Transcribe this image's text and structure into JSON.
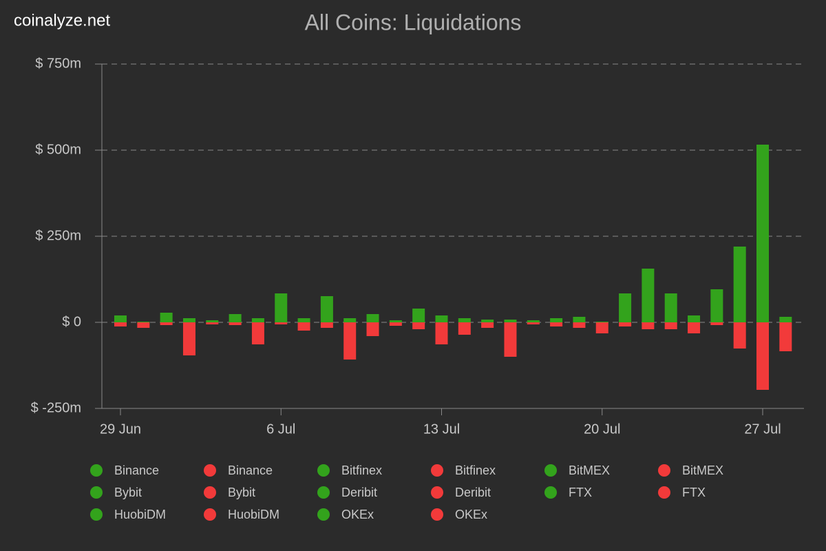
{
  "chart_data": {
    "type": "bar",
    "stacked": true,
    "watermark": "coinalyze.net",
    "title": "All Coins: Liquidations",
    "categories": [
      "29 Jun",
      null,
      null,
      null,
      null,
      null,
      null,
      "6 Jul",
      null,
      null,
      null,
      null,
      null,
      null,
      "13 Jul",
      null,
      null,
      null,
      null,
      null,
      null,
      "20 Jul",
      null,
      null,
      null,
      null,
      null,
      null,
      "27 Jul",
      null
    ],
    "ylim": [
      -250,
      750
    ],
    "yticks": [
      {
        "value": -250,
        "label": "$ -250m"
      },
      {
        "value": 0,
        "label": "$ 0"
      },
      {
        "value": 250,
        "label": "$ 250m"
      },
      {
        "value": 500,
        "label": "$ 500m"
      },
      {
        "value": 750,
        "label": "$ 750m"
      }
    ],
    "grid": true,
    "legend": "bottom",
    "series": [
      {
        "name": "Binance",
        "color": "#33a31c",
        "values": [
          20,
          2,
          28,
          12,
          6,
          24,
          12,
          84,
          12,
          76,
          12,
          24,
          6,
          40,
          20,
          12,
          8,
          8,
          6,
          12,
          16,
          2,
          84,
          156,
          84,
          20,
          96,
          220,
          516,
          16
        ]
      },
      {
        "name": "Binance",
        "color": "#f23a3a",
        "values": [
          -12,
          -16,
          -8,
          -96,
          -6,
          -8,
          -64,
          -6,
          -24,
          -16,
          -108,
          -40,
          -10,
          -20,
          -64,
          -36,
          -16,
          -100,
          -6,
          -12,
          -16,
          -32,
          -12,
          -20,
          -20,
          -32,
          -8,
          -76,
          -196,
          -84
        ]
      },
      {
        "name": "Bitfinex",
        "color": "#33a31c",
        "values": [
          0,
          0,
          0,
          0,
          0,
          0,
          0,
          0,
          0,
          0,
          0,
          0,
          0,
          0,
          0,
          0,
          0,
          0,
          0,
          0,
          0,
          0,
          0,
          0,
          0,
          0,
          0,
          0,
          0,
          0
        ]
      },
      {
        "name": "Bitfinex",
        "color": "#f23a3a",
        "values": [
          0,
          0,
          0,
          0,
          0,
          0,
          0,
          0,
          0,
          0,
          0,
          0,
          0,
          0,
          0,
          0,
          0,
          0,
          0,
          0,
          0,
          0,
          0,
          0,
          0,
          0,
          0,
          0,
          0,
          0
        ]
      },
      {
        "name": "BitMEX",
        "color": "#33a31c",
        "values": [
          0,
          0,
          0,
          0,
          0,
          0,
          0,
          0,
          0,
          0,
          0,
          0,
          0,
          0,
          0,
          0,
          0,
          0,
          0,
          0,
          0,
          0,
          0,
          0,
          0,
          0,
          0,
          0,
          0,
          0
        ]
      },
      {
        "name": "BitMEX",
        "color": "#f23a3a",
        "values": [
          0,
          0,
          0,
          0,
          0,
          0,
          0,
          0,
          0,
          0,
          0,
          0,
          0,
          0,
          0,
          0,
          0,
          0,
          0,
          0,
          0,
          0,
          0,
          0,
          0,
          0,
          0,
          0,
          0,
          0
        ]
      },
      {
        "name": "Bybit",
        "color": "#33a31c",
        "values": [
          0,
          0,
          0,
          0,
          0,
          0,
          0,
          0,
          0,
          0,
          0,
          0,
          0,
          0,
          0,
          0,
          0,
          0,
          0,
          0,
          0,
          0,
          0,
          0,
          0,
          0,
          0,
          0,
          0,
          0
        ]
      },
      {
        "name": "Bybit",
        "color": "#f23a3a",
        "values": [
          0,
          0,
          0,
          0,
          0,
          0,
          0,
          0,
          0,
          0,
          0,
          0,
          0,
          0,
          0,
          0,
          0,
          0,
          0,
          0,
          0,
          0,
          0,
          0,
          0,
          0,
          0,
          0,
          0,
          0
        ]
      },
      {
        "name": "Deribit",
        "color": "#33a31c",
        "values": [
          0,
          0,
          0,
          0,
          0,
          0,
          0,
          0,
          0,
          0,
          0,
          0,
          0,
          0,
          0,
          0,
          0,
          0,
          0,
          0,
          0,
          0,
          0,
          0,
          0,
          0,
          0,
          0,
          0,
          0
        ]
      },
      {
        "name": "Deribit",
        "color": "#f23a3a",
        "values": [
          0,
          0,
          0,
          0,
          0,
          0,
          0,
          0,
          0,
          0,
          0,
          0,
          0,
          0,
          0,
          0,
          0,
          0,
          0,
          0,
          0,
          0,
          0,
          0,
          0,
          0,
          0,
          0,
          0,
          0
        ]
      },
      {
        "name": "FTX",
        "color": "#33a31c",
        "values": [
          0,
          0,
          0,
          0,
          0,
          0,
          0,
          0,
          0,
          0,
          0,
          0,
          0,
          0,
          0,
          0,
          0,
          0,
          0,
          0,
          0,
          0,
          0,
          0,
          0,
          0,
          0,
          0,
          0,
          0
        ]
      },
      {
        "name": "FTX",
        "color": "#f23a3a",
        "values": [
          0,
          0,
          0,
          0,
          0,
          0,
          0,
          0,
          0,
          0,
          0,
          0,
          0,
          0,
          0,
          0,
          0,
          0,
          0,
          0,
          0,
          0,
          0,
          0,
          0,
          0,
          0,
          0,
          0,
          0
        ]
      },
      {
        "name": "HuobiDM",
        "color": "#33a31c",
        "values": [
          0,
          0,
          0,
          0,
          0,
          0,
          0,
          0,
          0,
          0,
          0,
          0,
          0,
          0,
          0,
          0,
          0,
          0,
          0,
          0,
          0,
          0,
          0,
          0,
          0,
          0,
          0,
          0,
          0,
          0
        ]
      },
      {
        "name": "HuobiDM",
        "color": "#f23a3a",
        "values": [
          0,
          0,
          0,
          0,
          0,
          0,
          0,
          0,
          0,
          0,
          0,
          0,
          0,
          0,
          0,
          0,
          0,
          0,
          0,
          0,
          0,
          0,
          0,
          0,
          0,
          0,
          0,
          0,
          0,
          0
        ]
      },
      {
        "name": "OKEx",
        "color": "#33a31c",
        "values": [
          0,
          0,
          0,
          0,
          0,
          0,
          0,
          0,
          0,
          0,
          0,
          0,
          0,
          0,
          0,
          0,
          0,
          0,
          0,
          0,
          0,
          0,
          0,
          0,
          0,
          0,
          0,
          0,
          0,
          0
        ]
      },
      {
        "name": "OKEx",
        "color": "#f23a3a",
        "values": [
          0,
          0,
          0,
          0,
          0,
          0,
          0,
          0,
          0,
          0,
          0,
          0,
          0,
          0,
          0,
          0,
          0,
          0,
          0,
          0,
          0,
          0,
          0,
          0,
          0,
          0,
          0,
          0,
          0,
          0
        ]
      }
    ]
  }
}
